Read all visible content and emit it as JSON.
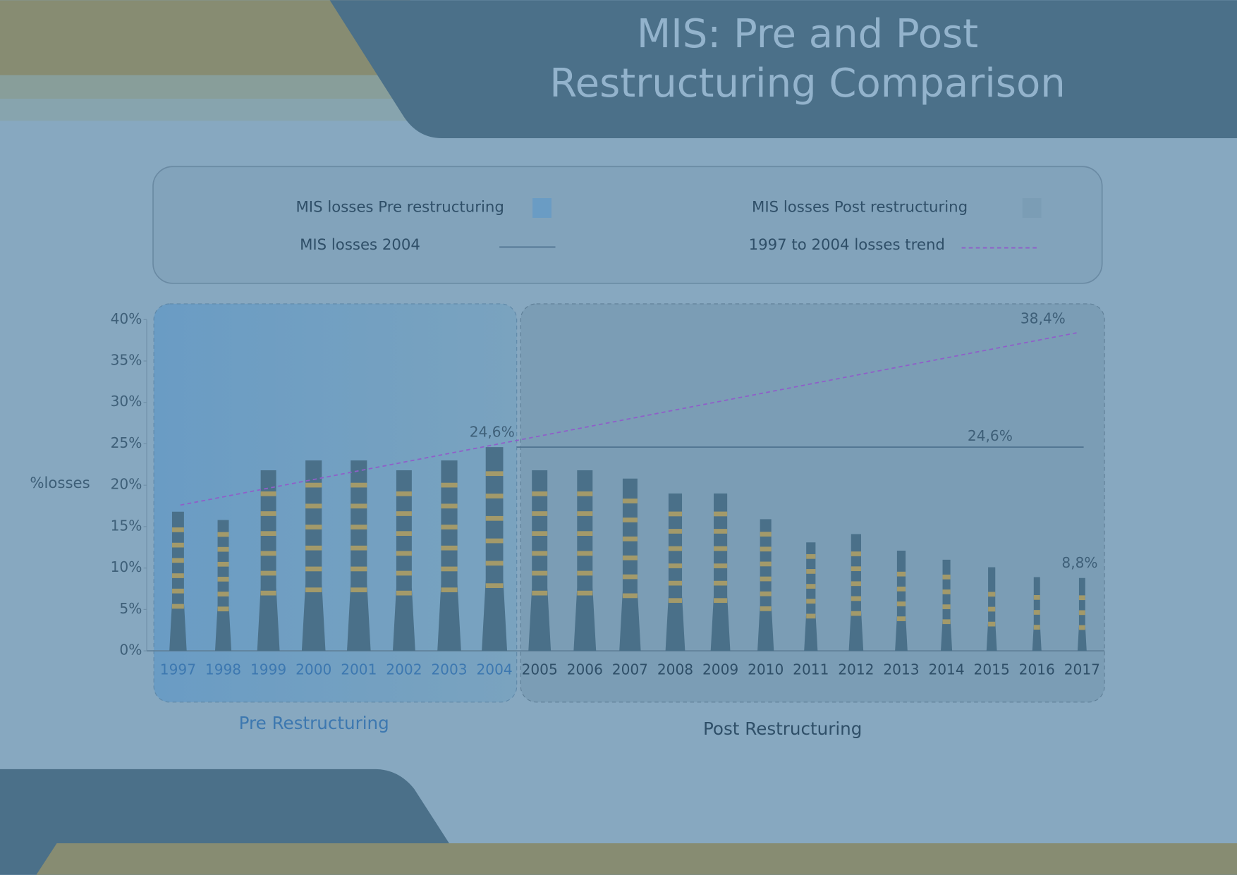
{
  "chart_data": {
    "type": "bar",
    "title": "MIS: Pre and Post Restructuring Comparison",
    "y_label": "%losses",
    "categories": [
      "1997",
      "1998",
      "1999",
      "2000",
      "2001",
      "2002",
      "2003",
      "2004",
      "2005",
      "2006",
      "2007",
      "2008",
      "2009",
      "2010",
      "2011",
      "2012",
      "2013",
      "2014",
      "2015",
      "2016",
      "2017"
    ],
    "series": [
      {
        "name": "MIS losses Pre restructuring",
        "color": "#6a9cc4",
        "group_label": "Pre Restructuring",
        "values": [
          16.8,
          15.8,
          21.8,
          23,
          23,
          21.8,
          23,
          24.6,
          null,
          null,
          null,
          null,
          null,
          null,
          null,
          null,
          null,
          null,
          null,
          null,
          null
        ],
        "value_labels": [
          null,
          null,
          null,
          null,
          null,
          null,
          null,
          "24,6%",
          null,
          null,
          null,
          null,
          null,
          null,
          null,
          null,
          null,
          null,
          null,
          null,
          null
        ]
      },
      {
        "name": "MIS losses Post restructuring",
        "color": "#7b9db5",
        "group_label": "Post Restructuring",
        "values": [
          null,
          null,
          null,
          null,
          null,
          null,
          null,
          null,
          21.8,
          21.8,
          20.8,
          19,
          19,
          15.9,
          13.1,
          14.1,
          12.1,
          11,
          10.1,
          8.9,
          8.8
        ],
        "value_labels": [
          null,
          null,
          null,
          null,
          null,
          null,
          null,
          null,
          null,
          null,
          null,
          null,
          null,
          null,
          null,
          null,
          null,
          null,
          null,
          null,
          "8,8%"
        ]
      }
    ],
    "reference": {
      "name": "MIS losses 2004",
      "value": 24.6,
      "label": "24,6%",
      "color": "#4f7390"
    },
    "trend": {
      "name": "1997 to 2004 losses trend",
      "values": [
        17.6,
        38.4
      ],
      "label": "38,4%",
      "color": "#8f5fc9"
    },
    "bar_color": "#4a7089",
    "stripe_color": "#a39a6a",
    "ylim": [
      0,
      40
    ],
    "yticks": [
      {
        "value": 0,
        "label": "0%"
      },
      {
        "value": 5,
        "label": "5%"
      },
      {
        "value": 10,
        "label": "10%"
      },
      {
        "value": 15,
        "label": "15%"
      },
      {
        "value": 20,
        "label": "20%"
      },
      {
        "value": 25,
        "label": "25%"
      },
      {
        "value": 30,
        "label": "30%"
      },
      {
        "value": 35,
        "label": "35%"
      },
      {
        "value": 40,
        "label": "40%"
      }
    ]
  }
}
